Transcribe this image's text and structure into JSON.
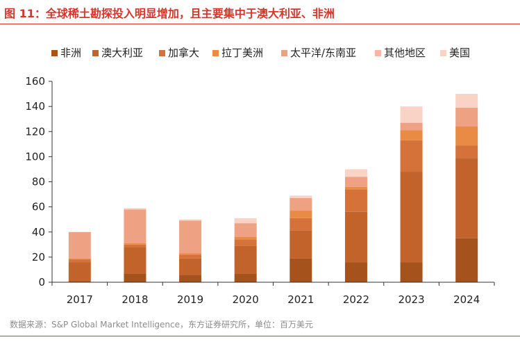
{
  "header": {
    "title": "图 11：全球稀土勘探投入明显增加，且主要集中于澳大利亚、非洲"
  },
  "footer": {
    "source": "数据来源：S&P Global Market Intelligence，东方证券研究所，单位：百万美元"
  },
  "chart_data": {
    "type": "bar",
    "stacked": true,
    "title": "",
    "xlabel": "",
    "ylabel": "",
    "ylim": [
      0,
      160
    ],
    "yticks": [
      0,
      20,
      40,
      60,
      80,
      100,
      120,
      140,
      160
    ],
    "grid": false,
    "legend_position": "top",
    "categories": [
      "2017",
      "2018",
      "2019",
      "2020",
      "2021",
      "2022",
      "2023",
      "2024"
    ],
    "series": [
      {
        "name": "非洲",
        "color": "#a5521d",
        "values": [
          1,
          7,
          6,
          7,
          19,
          16,
          16,
          35
        ]
      },
      {
        "name": "澳大利亚",
        "color": "#c2632b",
        "values": [
          15,
          21,
          13,
          22,
          22,
          40,
          72,
          64
        ]
      },
      {
        "name": "加拿大",
        "color": "#d5723a",
        "values": [
          2,
          2,
          3,
          5,
          10,
          18,
          25,
          10
        ]
      },
      {
        "name": "拉丁美洲",
        "color": "#e98a45",
        "values": [
          1,
          1,
          1,
          2,
          6,
          2,
          8,
          15
        ]
      },
      {
        "name": "太平洋/东南亚",
        "color": "#eea183",
        "values": [
          21,
          27,
          26,
          11,
          10,
          8,
          6,
          15
        ]
      },
      {
        "name": "其他地区",
        "color": "#f4b8a7",
        "values": [
          0,
          0,
          0,
          0,
          0,
          0,
          0,
          0
        ]
      },
      {
        "name": "美国",
        "color": "#f9d3c6",
        "values": [
          0,
          1,
          1,
          4,
          2,
          6,
          13,
          11
        ]
      }
    ]
  }
}
